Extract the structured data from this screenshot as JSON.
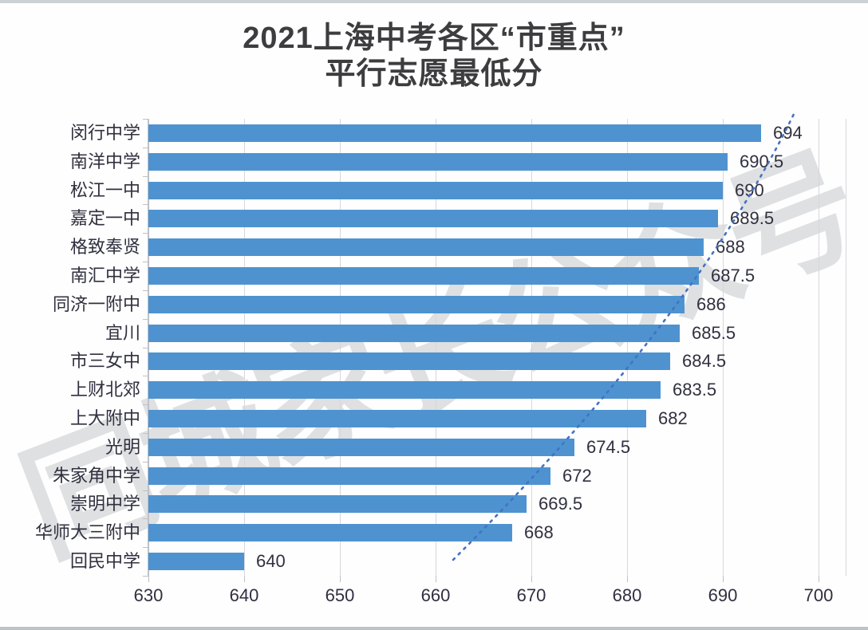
{
  "page": {
    "title_line1": "2021上海中考各区“市重点”",
    "title_line2": "平行志愿最低分",
    "watermark_text": "同城家长公众号"
  },
  "chart_data": {
    "type": "bar",
    "orientation": "horizontal",
    "title": "2021上海中考各区“市重点”平行志愿最低分",
    "categories": [
      "闵行中学",
      "南洋中学",
      "松江一中",
      "嘉定一中",
      "格致奉贤",
      "南汇中学",
      "同济一附中",
      "宜川",
      "市三女中",
      "上财北郊",
      "上大附中",
      "光明",
      "朱家角中学",
      "崇明中学",
      "华师大三附中",
      "回民中学"
    ],
    "values": [
      694,
      690.5,
      690,
      689.5,
      688,
      687.5,
      686,
      685.5,
      684.5,
      683.5,
      682,
      674.5,
      672,
      669.5,
      668,
      640
    ],
    "xlabel": "",
    "ylabel": "",
    "xlim": [
      630,
      700
    ],
    "x_ticks": [
      630,
      640,
      650,
      660,
      670,
      680,
      690,
      700
    ],
    "grid": true,
    "legend": "none",
    "bar_color": "#4E93D0",
    "trendline": {
      "style": "dotted",
      "color": "#4472C4",
      "note": "dotted trendline following bar tips from bottom-left to top-right"
    }
  },
  "colors": {
    "bar": "#4E93D0",
    "trendline": "#4472C4",
    "title_text": "#3D3D40",
    "label_text": "#30303F",
    "gridline": "#D7D7DD",
    "watermark": "#B8BDC2"
  }
}
